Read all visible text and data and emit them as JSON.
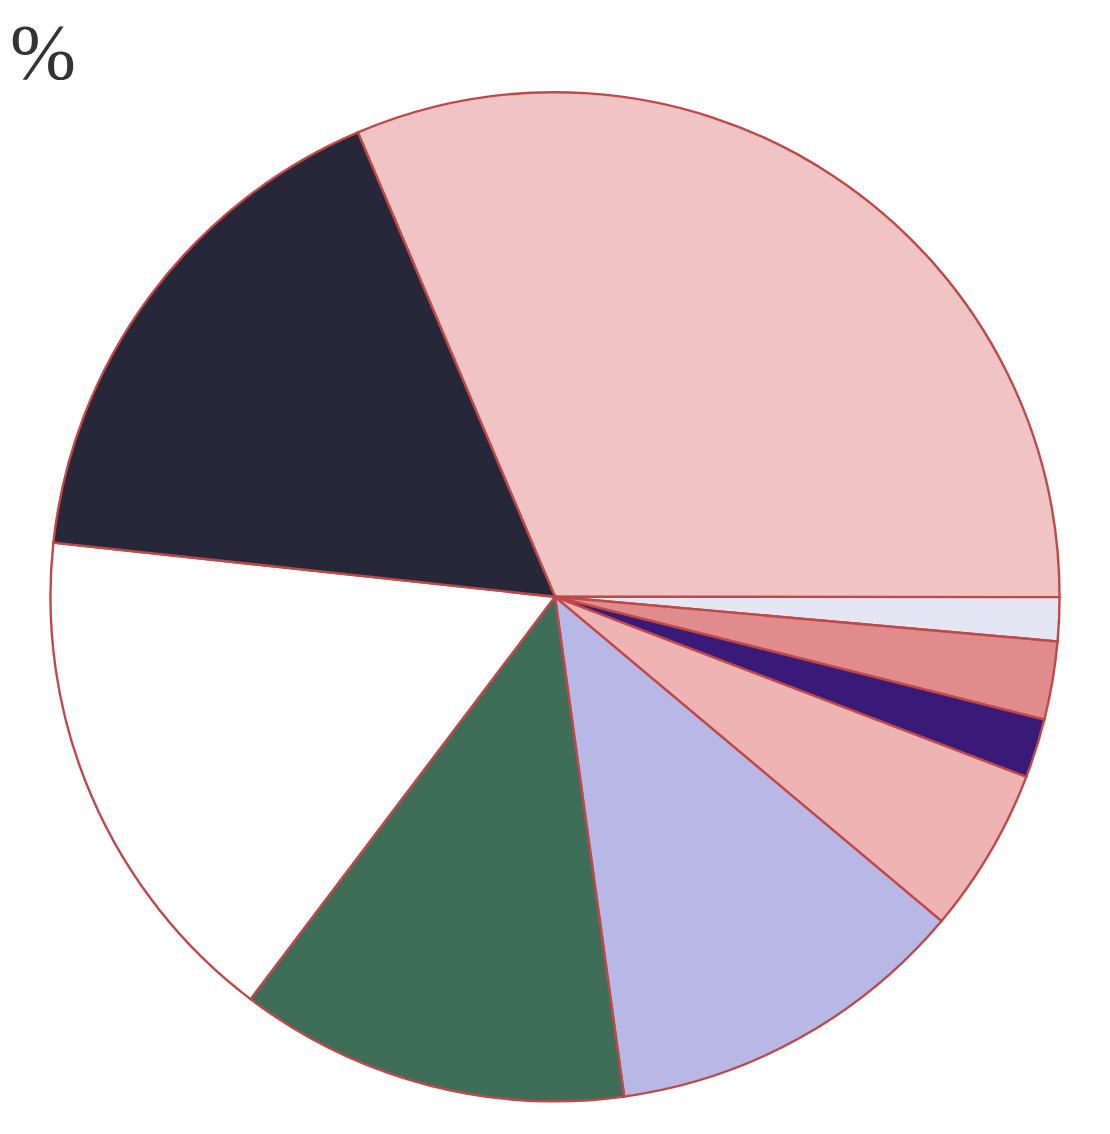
{
  "chart_data": {
    "type": "pie",
    "categories": [
      null,
      null,
      null,
      null,
      null,
      null,
      null,
      null,
      null
    ],
    "values": [
      31.4,
      1.4,
      2.5,
      1.9,
      5.3,
      11.7,
      12.5,
      16.4,
      16.9
    ],
    "colors": [
      "#f0c4c4",
      "#e4e6f4",
      "#e08c8c",
      "#3a1a78",
      "#eeb4b4",
      "#b8b8e6",
      "#3f6e58",
      "#ffffff",
      "#26283a"
    ],
    "legend": false,
    "annotations": [
      "%"
    ]
  }
}
